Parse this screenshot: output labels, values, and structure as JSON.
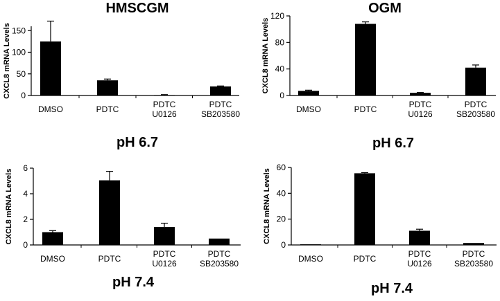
{
  "chart_data": [
    {
      "type": "bar",
      "title": "HMSCGM",
      "subtitle": "",
      "ylabel": "CXCL8 mRNA Levels",
      "ylim": [
        0,
        160
      ],
      "yticks": [
        "0",
        "50",
        "100",
        "150"
      ],
      "categories": [
        [
          "DMSO"
        ],
        [
          "PDTC"
        ],
        [
          "PDTC",
          "U0126"
        ],
        [
          "PDTC",
          "SB203580"
        ]
      ],
      "values": [
        125,
        35,
        1,
        21
      ],
      "errors": [
        47,
        3,
        1,
        1
      ],
      "grid": false,
      "legend": "none"
    },
    {
      "type": "bar",
      "title": "OGM",
      "subtitle": "pH 6.7",
      "ylabel": "CXCL8 mRNA Levels",
      "ylim": [
        0,
        120
      ],
      "yticks": [
        "0",
        "40",
        "80",
        "120"
      ],
      "categories": [
        [
          "DMSO"
        ],
        [
          "PDTC"
        ],
        [
          "PDTC",
          "U0126"
        ],
        [
          "PDTC",
          "SB203580"
        ]
      ],
      "values": [
        7,
        108,
        4,
        42
      ],
      "errors": [
        1,
        3,
        0.5,
        4
      ],
      "grid": false,
      "legend": "none"
    },
    {
      "type": "bar",
      "title": "pH 6.7",
      "subtitle": "pH 7.4",
      "ylabel": "CXCL8 mRNA Levels",
      "ylim": [
        0,
        6
      ],
      "yticks": [
        "0",
        "2",
        "4",
        "6"
      ],
      "categories": [
        [
          "DMSO"
        ],
        [
          "PDTC"
        ],
        [
          "PDTC",
          "U0126"
        ],
        [
          "PDTC",
          "SB203580"
        ]
      ],
      "values": [
        1.0,
        5.05,
        1.4,
        0.5
      ],
      "errors": [
        0.12,
        0.7,
        0.3,
        0
      ],
      "grid": false,
      "legend": "none"
    },
    {
      "type": "bar",
      "title": "",
      "subtitle": "pH 7.4",
      "ylabel": "CXCL8 mRNA Levels",
      "ylim": [
        0,
        60
      ],
      "yticks": [
        "0",
        "20",
        "40",
        "60"
      ],
      "categories": [
        [
          "DMSO"
        ],
        [
          "PDTC"
        ],
        [
          "PDTC",
          "U0126"
        ],
        [
          "PDTC",
          "SB203580"
        ]
      ],
      "values": [
        0.5,
        55.5,
        11,
        1.5
      ],
      "errors": [
        0,
        0.5,
        1.2,
        0
      ],
      "grid": false,
      "legend": "none"
    }
  ]
}
